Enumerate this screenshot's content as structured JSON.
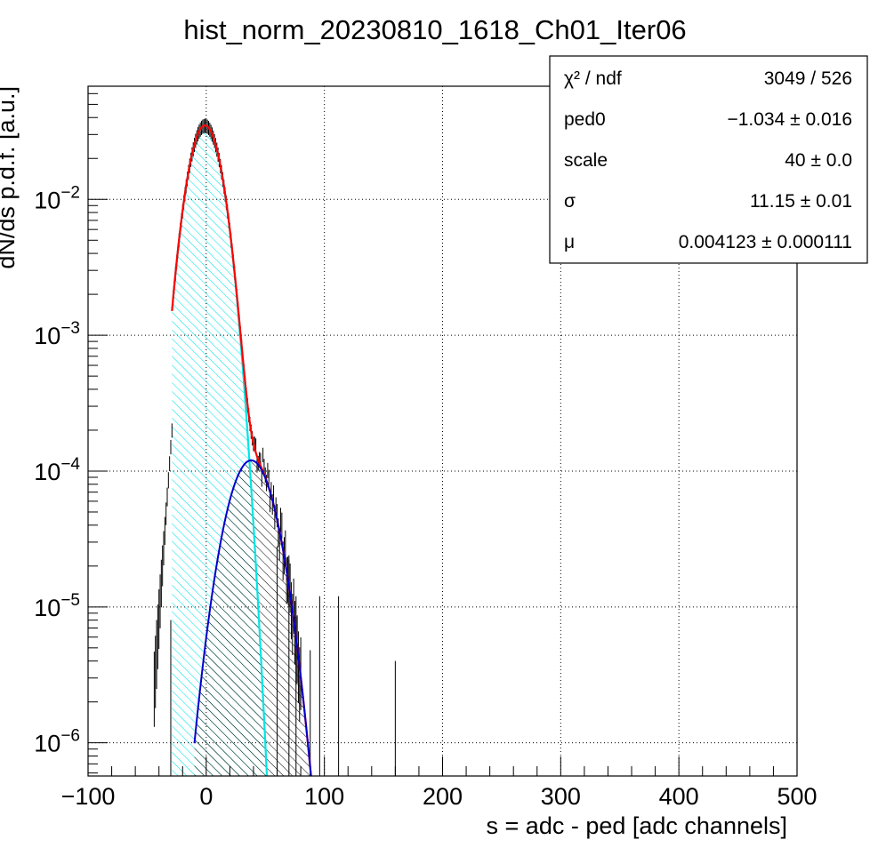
{
  "chart_data": {
    "type": "line",
    "title": "hist_norm_20230810_1618_Ch01_Iter06",
    "xlabel": "s = adc - ped [adc channels]",
    "ylabel": "dN/ds p.d.f. [a.u.]",
    "xlim": [
      -100,
      500
    ],
    "ylim": [
      5.7e-07,
      0.068
    ],
    "yscale": "log",
    "grid": true,
    "x_ticks": [
      {
        "value": -100,
        "label": "−100"
      },
      {
        "value": 0,
        "label": "0"
      },
      {
        "value": 100,
        "label": "100"
      },
      {
        "value": 200,
        "label": "200"
      },
      {
        "value": 300,
        "label": "300"
      },
      {
        "value": 400,
        "label": "400"
      },
      {
        "value": 500,
        "label": "500"
      }
    ],
    "y_ticks": [
      {
        "value": 1e-06,
        "base": "10",
        "exp": "−6"
      },
      {
        "value": 1e-05,
        "base": "10",
        "exp": "−5"
      },
      {
        "value": 0.0001,
        "base": "10",
        "exp": "−4"
      },
      {
        "value": 0.001,
        "base": "10",
        "exp": "−3"
      },
      {
        "value": 0.01,
        "base": "10",
        "exp": "−2"
      }
    ],
    "fit_parameters": {
      "ped0": -1.034,
      "scale": 40,
      "sigma": 11.15,
      "mu": 0.004123
    },
    "colors": {
      "total_fit": "#ff0000",
      "pedestal_component": "#00e5e5",
      "signal_component": "#0000cc",
      "data_points": "#000000"
    },
    "stats_box": {
      "rows": [
        {
          "label": "χ² / ndf",
          "value": "3049 / 526"
        },
        {
          "label": "ped0",
          "value": "−1.034 ± 0.016"
        },
        {
          "label": "scale",
          "value": "40 ± 0.0"
        },
        {
          "label": "σ",
          "value": "11.15 ± 0.01"
        },
        {
          "label": "μ",
          "value": "0.004123 ± 0.000111"
        }
      ]
    }
  }
}
